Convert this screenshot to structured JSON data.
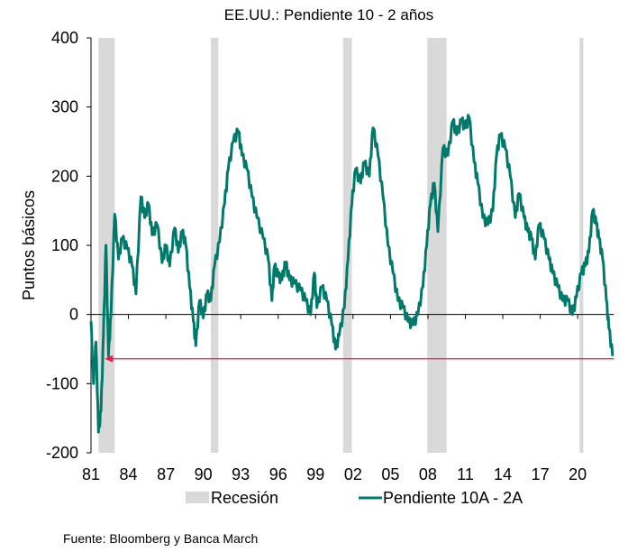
{
  "chart_data": {
    "type": "line",
    "title": "EE.UU.: Pendiente 10 - 2 años",
    "xlabel": "",
    "ylabel": "Puntos básicos",
    "ylim": [
      -200,
      400
    ],
    "xlim": [
      1981,
      2022.9
    ],
    "yticks": [
      400,
      300,
      200,
      100,
      0,
      -100,
      -200
    ],
    "ytick_labels": [
      "400",
      "300",
      "200",
      "100",
      "0",
      "-100",
      "-200"
    ],
    "xticks": [
      1981,
      1984,
      1987,
      1990,
      1993,
      1996,
      1999,
      2002,
      2005,
      2008,
      2011,
      2014,
      2017,
      2020
    ],
    "xtick_labels": [
      "81",
      "84",
      "87",
      "90",
      "93",
      "96",
      "99",
      "02",
      "05",
      "08",
      "11",
      "14",
      "17",
      "20"
    ],
    "grid": false,
    "legend_position": "bottom",
    "legend": [
      {
        "label": "Recesión",
        "type": "band",
        "color": "#d9d9d9"
      },
      {
        "label": "Pendiente 10A - 2A",
        "type": "line",
        "color": "#00796b"
      }
    ],
    "recessions": [
      {
        "start": 1981.6,
        "end": 1982.9
      },
      {
        "start": 1990.6,
        "end": 1991.2
      },
      {
        "start": 2001.2,
        "end": 2001.9
      },
      {
        "start": 2007.95,
        "end": 2009.5
      },
      {
        "start": 2020.15,
        "end": 2020.45
      }
    ],
    "series": [
      {
        "name": "Pendiente 10A - 2A",
        "color": "#00796b",
        "x": [
          1981.0,
          1981.2,
          1981.4,
          1981.6,
          1981.8,
          1982.0,
          1982.2,
          1982.4,
          1982.6,
          1982.9,
          1983.2,
          1983.5,
          1983.9,
          1984.3,
          1984.6,
          1985.0,
          1985.3,
          1985.6,
          1985.9,
          1986.3,
          1986.7,
          1987.0,
          1987.3,
          1987.7,
          1988.0,
          1988.3,
          1988.6,
          1988.9,
          1989.2,
          1989.4,
          1989.7,
          1990.0,
          1990.3,
          1990.6,
          1990.9,
          1991.3,
          1991.7,
          1992.0,
          1992.4,
          1992.8,
          1993.1,
          1993.5,
          1993.9,
          1994.3,
          1994.8,
          1995.2,
          1995.5,
          1995.7,
          1996.0,
          1996.3,
          1996.6,
          1996.9,
          1997.3,
          1997.8,
          1998.2,
          1998.6,
          1998.9,
          1999.1,
          1999.5,
          1999.9,
          2000.3,
          2000.6,
          2000.9,
          2001.3,
          2001.6,
          2001.9,
          2002.2,
          2002.6,
          2002.9,
          2003.3,
          2003.6,
          2004.0,
          2004.4,
          2004.8,
          2005.2,
          2005.6,
          2006.0,
          2006.4,
          2006.8,
          2007.2,
          2007.6,
          2007.9,
          2008.2,
          2008.5,
          2008.8,
          2009.2,
          2009.6,
          2010.0,
          2010.3,
          2010.7,
          2011.0,
          2011.3,
          2011.7,
          2012.0,
          2012.4,
          2012.8,
          2013.2,
          2013.5,
          2013.8,
          2014.2,
          2014.6,
          2015.0,
          2015.3,
          2015.7,
          2016.0,
          2016.3,
          2016.6,
          2016.9,
          2017.3,
          2017.7,
          2018.0,
          2018.4,
          2018.8,
          2019.2,
          2019.6,
          2019.9,
          2020.3,
          2020.6,
          2020.9,
          2021.2,
          2021.5,
          2021.7,
          2022.0,
          2022.3,
          2022.5,
          2022.8
        ],
        "y": [
          -10,
          -100,
          -40,
          -170,
          -140,
          -30,
          100,
          -60,
          0,
          145,
          80,
          110,
          95,
          70,
          30,
          170,
          140,
          160,
          115,
          130,
          75,
          100,
          70,
          125,
          90,
          120,
          100,
          40,
          -10,
          -45,
          20,
          -5,
          30,
          20,
          70,
          105,
          160,
          210,
          250,
          265,
          230,
          210,
          170,
          140,
          110,
          80,
          20,
          70,
          55,
          50,
          75,
          50,
          45,
          35,
          20,
          0,
          60,
          10,
          40,
          20,
          -15,
          -50,
          -30,
          10,
          80,
          160,
          210,
          190,
          220,
          200,
          270,
          230,
          170,
          100,
          60,
          20,
          10,
          -10,
          -15,
          0,
          40,
          100,
          160,
          190,
          120,
          240,
          230,
          280,
          260,
          280,
          270,
          285,
          220,
          190,
          140,
          130,
          150,
          230,
          260,
          240,
          200,
          140,
          175,
          140,
          120,
          110,
          80,
          130,
          110,
          80,
          60,
          40,
          20,
          20,
          0,
          25,
          60,
          70,
          90,
          150,
          130,
          110,
          80,
          20,
          -20,
          -60
        ]
      }
    ],
    "annotations": [
      {
        "type": "arrow",
        "text": "",
        "color": "#e0204a",
        "y": -64,
        "x_from": 2022.9,
        "x_to": 1982.1
      }
    ],
    "source": "Fuente: Bloomberg y Banca March"
  }
}
